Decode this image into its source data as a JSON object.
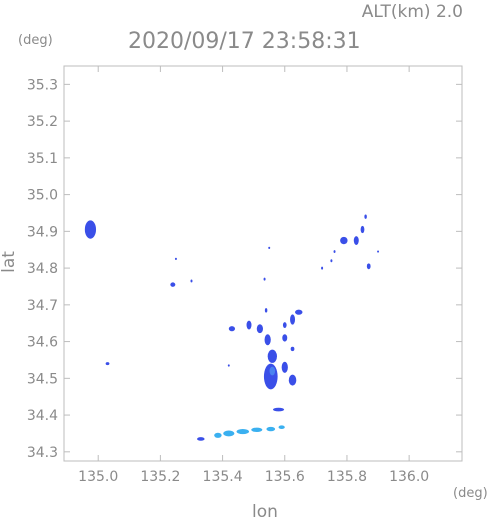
{
  "header": {
    "altitude_label": "ALT(km) 2.0",
    "timestamp": "2020/09/17 23:58:31"
  },
  "chart_data": {
    "type": "scatter",
    "xlabel": "lon",
    "ylabel": "lat",
    "x_unit": "(deg)",
    "y_unit": "(deg)",
    "xlim": [
      134.89,
      136.17
    ],
    "ylim": [
      34.275,
      35.35
    ],
    "x_ticks": [
      135.0,
      135.2,
      135.4,
      135.6,
      135.8,
      136.0
    ],
    "x_tick_labels": [
      "135.0",
      "135.2",
      "135.4",
      "135.6",
      "135.8",
      "136.0"
    ],
    "y_ticks": [
      34.3,
      34.4,
      34.5,
      34.6,
      34.7,
      34.8,
      34.9,
      35.0,
      35.1,
      35.2,
      35.3
    ],
    "y_tick_labels": [
      "34.3",
      "34.4",
      "34.5",
      "34.6",
      "34.7",
      "34.8",
      "34.9",
      "35.0",
      "35.1",
      "35.2",
      "35.3"
    ],
    "grid": false,
    "colors": {
      "echo_blue": "#3a4fe8",
      "echo_light": "#3ab0f0",
      "echo_mid": "#4a82f0",
      "axis": "#bdbdbd",
      "text": "#8a8a8a"
    },
    "cells": [
      {
        "lon": 134.975,
        "lat": 34.905,
        "rx": 0.018,
        "ry": 0.025,
        "level": "high"
      },
      {
        "lon": 135.03,
        "lat": 34.54,
        "rx": 0.006,
        "ry": 0.004,
        "level": "high"
      },
      {
        "lon": 135.24,
        "lat": 34.755,
        "rx": 0.008,
        "ry": 0.006,
        "level": "high"
      },
      {
        "lon": 135.25,
        "lat": 34.825,
        "rx": 0.003,
        "ry": 0.003,
        "level": "high"
      },
      {
        "lon": 135.3,
        "lat": 34.765,
        "rx": 0.003,
        "ry": 0.004,
        "level": "high"
      },
      {
        "lon": 135.43,
        "lat": 34.635,
        "rx": 0.01,
        "ry": 0.007,
        "level": "high"
      },
      {
        "lon": 135.42,
        "lat": 34.535,
        "rx": 0.003,
        "ry": 0.003,
        "level": "high"
      },
      {
        "lon": 135.485,
        "lat": 34.645,
        "rx": 0.008,
        "ry": 0.012,
        "level": "high"
      },
      {
        "lon": 135.52,
        "lat": 34.635,
        "rx": 0.01,
        "ry": 0.012,
        "level": "high"
      },
      {
        "lon": 135.545,
        "lat": 34.605,
        "rx": 0.01,
        "ry": 0.015,
        "level": "high"
      },
      {
        "lon": 135.56,
        "lat": 34.56,
        "rx": 0.015,
        "ry": 0.018,
        "level": "high"
      },
      {
        "lon": 135.555,
        "lat": 34.505,
        "rx": 0.022,
        "ry": 0.035,
        "level": "high"
      },
      {
        "lon": 135.56,
        "lat": 34.52,
        "rx": 0.009,
        "ry": 0.012,
        "level": "mid"
      },
      {
        "lon": 135.6,
        "lat": 34.53,
        "rx": 0.01,
        "ry": 0.015,
        "level": "high"
      },
      {
        "lon": 135.625,
        "lat": 34.495,
        "rx": 0.012,
        "ry": 0.015,
        "level": "high"
      },
      {
        "lon": 135.6,
        "lat": 34.61,
        "rx": 0.008,
        "ry": 0.01,
        "level": "high"
      },
      {
        "lon": 135.625,
        "lat": 34.58,
        "rx": 0.006,
        "ry": 0.006,
        "level": "high"
      },
      {
        "lon": 135.6,
        "lat": 34.645,
        "rx": 0.006,
        "ry": 0.008,
        "level": "high"
      },
      {
        "lon": 135.625,
        "lat": 34.66,
        "rx": 0.008,
        "ry": 0.014,
        "level": "high"
      },
      {
        "lon": 135.645,
        "lat": 34.68,
        "rx": 0.012,
        "ry": 0.007,
        "level": "high"
      },
      {
        "lon": 135.54,
        "lat": 34.685,
        "rx": 0.004,
        "ry": 0.006,
        "level": "high"
      },
      {
        "lon": 135.58,
        "lat": 34.415,
        "rx": 0.018,
        "ry": 0.005,
        "level": "high"
      },
      {
        "lon": 135.33,
        "lat": 34.335,
        "rx": 0.012,
        "ry": 0.005,
        "level": "high"
      },
      {
        "lon": 135.385,
        "lat": 34.345,
        "rx": 0.012,
        "ry": 0.007,
        "level": "light"
      },
      {
        "lon": 135.42,
        "lat": 34.35,
        "rx": 0.018,
        "ry": 0.008,
        "level": "light"
      },
      {
        "lon": 135.465,
        "lat": 34.355,
        "rx": 0.02,
        "ry": 0.007,
        "level": "light"
      },
      {
        "lon": 135.51,
        "lat": 34.36,
        "rx": 0.018,
        "ry": 0.006,
        "level": "light"
      },
      {
        "lon": 135.555,
        "lat": 34.362,
        "rx": 0.014,
        "ry": 0.006,
        "level": "light"
      },
      {
        "lon": 135.59,
        "lat": 34.367,
        "rx": 0.01,
        "ry": 0.005,
        "level": "light"
      },
      {
        "lon": 135.79,
        "lat": 34.875,
        "rx": 0.012,
        "ry": 0.01,
        "level": "high"
      },
      {
        "lon": 135.83,
        "lat": 34.875,
        "rx": 0.008,
        "ry": 0.012,
        "level": "high"
      },
      {
        "lon": 135.85,
        "lat": 34.905,
        "rx": 0.006,
        "ry": 0.01,
        "level": "high"
      },
      {
        "lon": 135.86,
        "lat": 34.94,
        "rx": 0.004,
        "ry": 0.006,
        "level": "high"
      },
      {
        "lon": 135.87,
        "lat": 34.805,
        "rx": 0.006,
        "ry": 0.008,
        "level": "high"
      },
      {
        "lon": 135.76,
        "lat": 34.845,
        "rx": 0.003,
        "ry": 0.004,
        "level": "high"
      },
      {
        "lon": 135.75,
        "lat": 34.82,
        "rx": 0.003,
        "ry": 0.004,
        "level": "high"
      },
      {
        "lon": 135.72,
        "lat": 34.8,
        "rx": 0.003,
        "ry": 0.004,
        "level": "high"
      },
      {
        "lon": 135.55,
        "lat": 34.855,
        "rx": 0.002,
        "ry": 0.003,
        "level": "high"
      },
      {
        "lon": 135.535,
        "lat": 34.77,
        "rx": 0.003,
        "ry": 0.004,
        "level": "high"
      },
      {
        "lon": 135.9,
        "lat": 34.845,
        "rx": 0.003,
        "ry": 0.003,
        "level": "high"
      }
    ]
  }
}
